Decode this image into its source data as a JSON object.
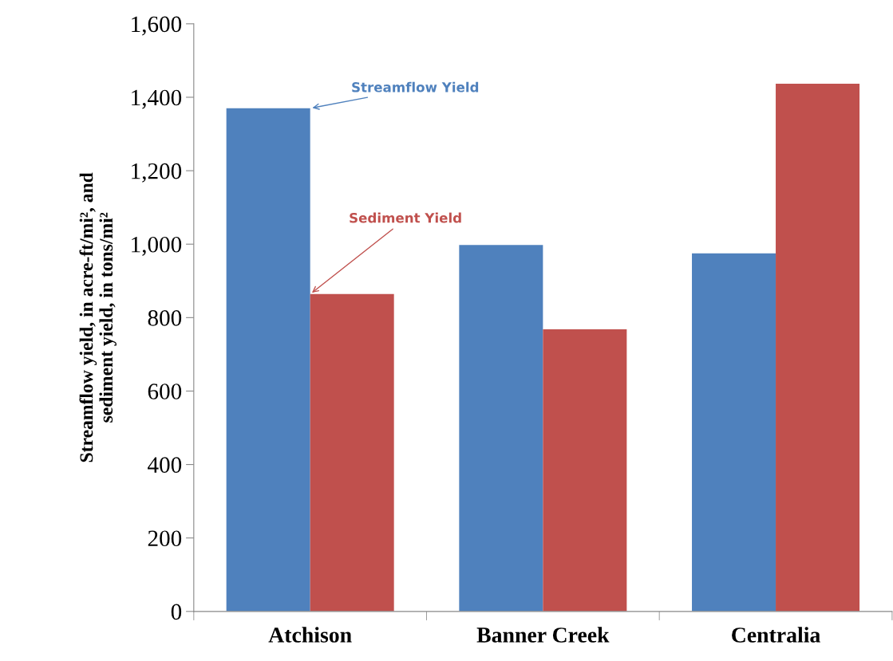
{
  "chart_data": {
    "type": "bar",
    "ylabel": "Streamflow yield, in acre-ft/mi², and\nsediment yield, in tons/mi²",
    "categories": [
      "Atchison",
      "Banner Creek",
      "Centralia"
    ],
    "series": [
      {
        "color": "#4f81bd",
        "values": [
          1370,
          998,
          975
        ]
      },
      {
        "color": "#c0504d",
        "values": [
          864,
          768,
          1437
        ]
      }
    ],
    "annotations": [
      {
        "text": "Streamflow Yield",
        "x": "Atchison",
        "y": 1370
      },
      {
        "text": "Sediment Yield",
        "x": "Atchison",
        "y": 864
      }
    ],
    "ylim": [
      0,
      1600
    ],
    "yticks": [
      0,
      200,
      400,
      600,
      800,
      {
        "value": 1000,
        "label": "1,000"
      },
      {
        "value": 1200,
        "label": "1,200"
      },
      {
        "value": 1400,
        "label": "1,400"
      },
      {
        "value": 1600,
        "label": "1,600"
      }
    ],
    "grid": false,
    "legend": false
  }
}
